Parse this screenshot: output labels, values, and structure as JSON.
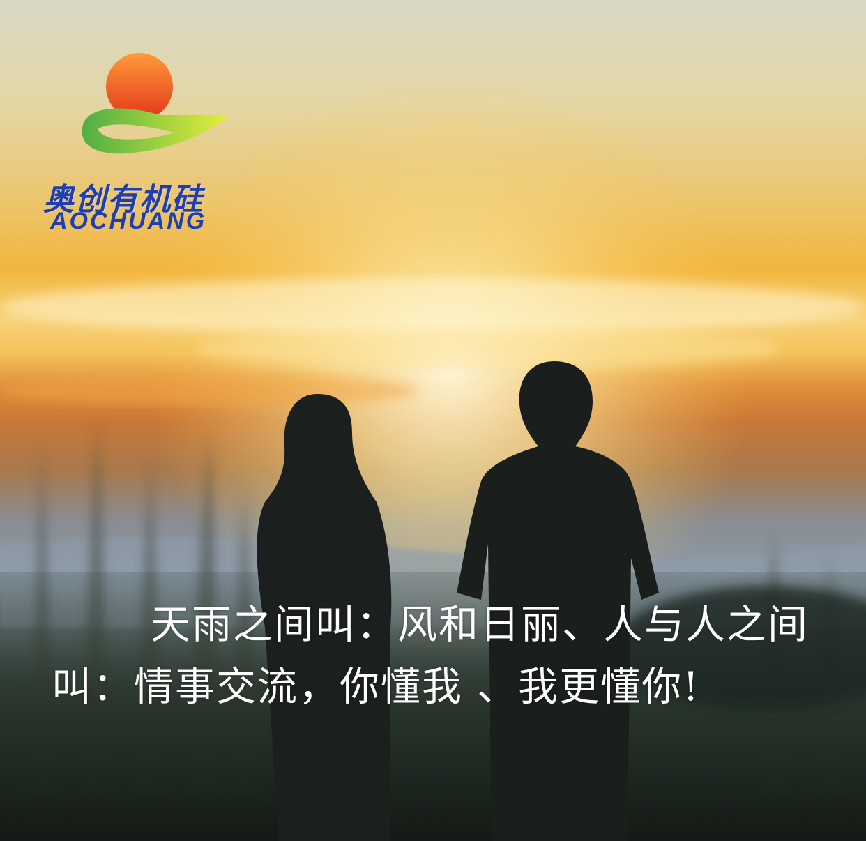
{
  "logo": {
    "chinese_name": "奥创有机硅",
    "english_name": "AOCHUANG"
  },
  "caption": {
    "text": "天雨之间叫：风和日丽、人与人之间叫：情事交流，你懂我 、我更懂你!"
  },
  "colors": {
    "logo_blue": "#1d3fb3",
    "logo_sun": "#f05a1a",
    "logo_swoosh": "#8cc63f",
    "caption_text": "#ffffff",
    "sky_top": "#dcd8c4",
    "sky_glow": "#f2b43a",
    "ground": "#1f2a22"
  }
}
